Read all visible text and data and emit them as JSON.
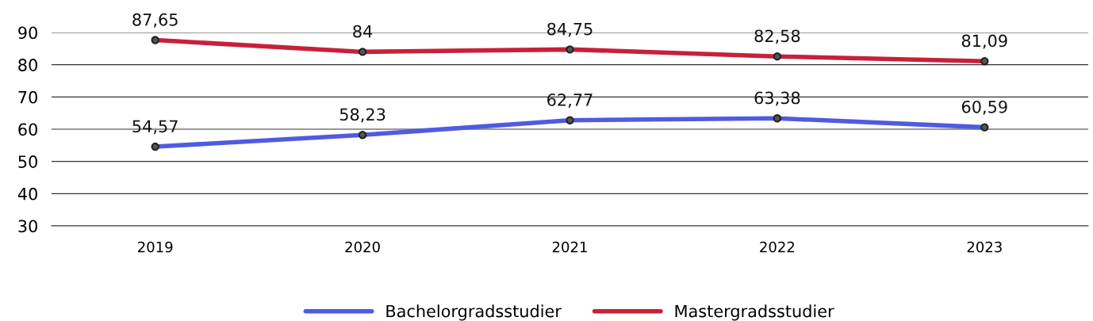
{
  "chart_data": {
    "type": "line",
    "categories": [
      "2019",
      "2020",
      "2021",
      "2022",
      "2023"
    ],
    "series": [
      {
        "name": "Bachelorgradsstudier",
        "color": "#4f5be0",
        "values": [
          54.57,
          58.23,
          62.77,
          63.38,
          60.59
        ],
        "value_labels": [
          "54,57",
          "58,23",
          "62,77",
          "63,38",
          "60,59"
        ]
      },
      {
        "name": "Mastergradsstudier",
        "color": "#c8203a",
        "values": [
          87.65,
          84,
          84.75,
          82.58,
          81.09
        ],
        "value_labels": [
          "87,65",
          "84",
          "84,75",
          "82,58",
          "81,09"
        ]
      }
    ],
    "ylim": [
      30,
      90
    ],
    "yticks": [
      30,
      40,
      50,
      60,
      70,
      80,
      90
    ],
    "grid": "y",
    "legend": "bottom",
    "marker": "circle",
    "line_style": "solid"
  }
}
